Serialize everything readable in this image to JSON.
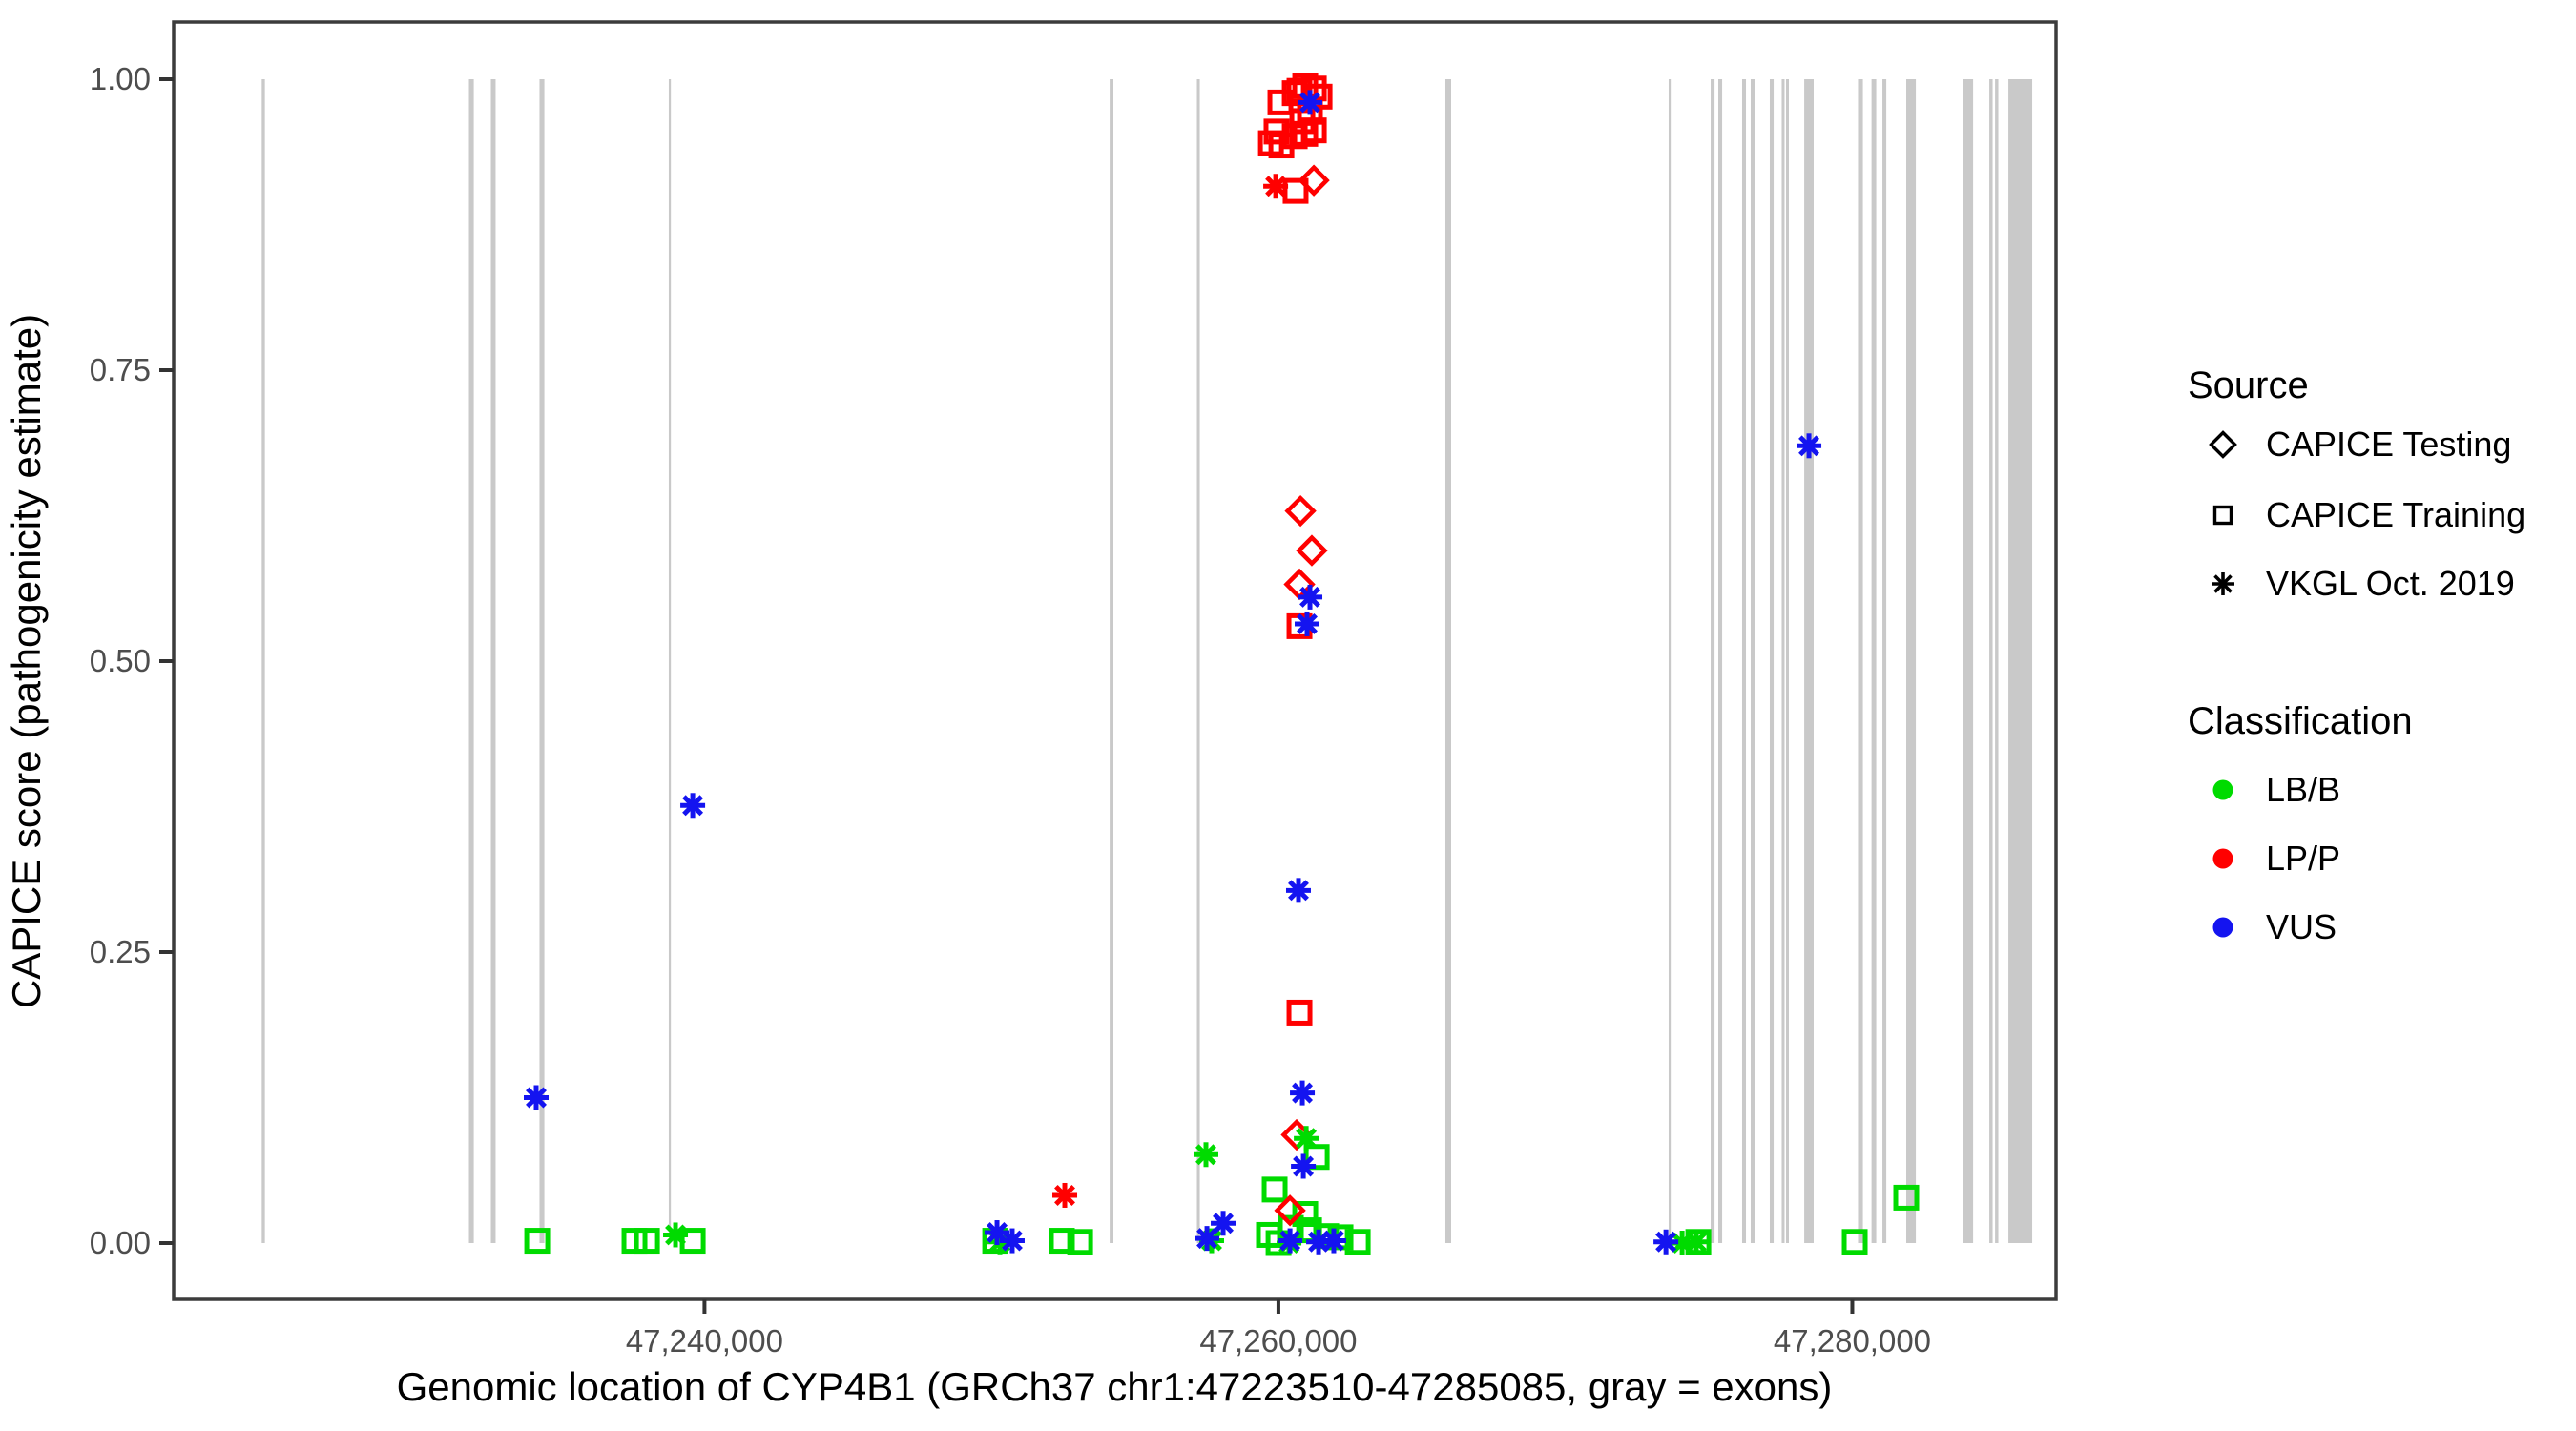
{
  "legend": {
    "source": {
      "title": "Source",
      "items": [
        {
          "label": "CAPICE Testing",
          "marker": "diamond"
        },
        {
          "label": "CAPICE Training",
          "marker": "square"
        },
        {
          "label": "VKGL Oct. 2019",
          "marker": "asterisk"
        }
      ]
    },
    "classification": {
      "title": "Classification",
      "items": [
        {
          "label": "LB/B",
          "color": "#00DB00"
        },
        {
          "label": "LP/P",
          "color": "#FF0000"
        },
        {
          "label": "VUS",
          "color": "#1414F0"
        }
      ]
    }
  },
  "chart_data": {
    "type": "scatter",
    "title": "",
    "xlabel": "Genomic location of CYP4B1 (GRCh37 chr1:47223510-47285085, gray = exons)",
    "ylabel": "CAPICE score (pathogenicity estimate)",
    "x_domain": [
      47221500,
      47287100
    ],
    "ylim": [
      0,
      1
    ],
    "grid": false,
    "legend_position": "right",
    "exon_color": "#C9C9C9",
    "class_colors": {
      "LB/B": "#00DB00",
      "LP/P": "#FF0000",
      "VUS": "#1414F0"
    },
    "shape_map": {
      "CAPICE Testing": "diamond",
      "CAPICE Training": "square",
      "VKGL Oct. 2019": "asterisk"
    },
    "x_ticks": [
      {
        "pos": 47240000,
        "label": "47,240,000"
      },
      {
        "pos": 47260000,
        "label": "47,260,000"
      },
      {
        "pos": 47280000,
        "label": "47,280,000"
      }
    ],
    "y_ticks": [
      {
        "value": 0.0,
        "label": "0.00"
      },
      {
        "value": 0.25,
        "label": "0.25"
      },
      {
        "value": 0.5,
        "label": "0.50"
      },
      {
        "value": 0.75,
        "label": "0.75"
      },
      {
        "value": 1.0,
        "label": "1.00"
      }
    ],
    "exons": [
      {
        "start": 47224570,
        "end": 47224680
      },
      {
        "start": 47231790,
        "end": 47231960
      },
      {
        "start": 47232555,
        "end": 47232720
      },
      {
        "start": 47234250,
        "end": 47234420
      },
      {
        "start": 47238755,
        "end": 47238825
      },
      {
        "start": 47254120,
        "end": 47254250
      },
      {
        "start": 47257160,
        "end": 47257260
      },
      {
        "start": 47265820,
        "end": 47266020
      },
      {
        "start": 47273600,
        "end": 47273670
      },
      {
        "start": 47275065,
        "end": 47275200
      },
      {
        "start": 47275330,
        "end": 47275465
      },
      {
        "start": 47276160,
        "end": 47276295
      },
      {
        "start": 47276460,
        "end": 47276595
      },
      {
        "start": 47277125,
        "end": 47277260
      },
      {
        "start": 47277540,
        "end": 47277640
      },
      {
        "start": 47277690,
        "end": 47277790
      },
      {
        "start": 47278325,
        "end": 47278655
      },
      {
        "start": 47280200,
        "end": 47280370
      },
      {
        "start": 47280670,
        "end": 47280835
      },
      {
        "start": 47281050,
        "end": 47281185
      },
      {
        "start": 47281880,
        "end": 47282215
      },
      {
        "start": 47283875,
        "end": 47284210
      },
      {
        "start": 47284775,
        "end": 47284890
      },
      {
        "start": 47284975,
        "end": 47285090
      },
      {
        "start": 47285440,
        "end": 47286270
      }
    ],
    "points": [
      {
        "pos": 47260735,
        "score": 0.99,
        "source": "CAPICE Training",
        "class": "LP/P"
      },
      {
        "pos": 47260935,
        "score": 0.994,
        "source": "CAPICE Training",
        "class": "LP/P"
      },
      {
        "pos": 47261235,
        "score": 0.992,
        "source": "CAPICE Training",
        "class": "LP/P"
      },
      {
        "pos": 47260570,
        "score": 0.988,
        "source": "CAPICE Training",
        "class": "LP/P"
      },
      {
        "pos": 47261435,
        "score": 0.985,
        "source": "CAPICE Training",
        "class": "LP/P"
      },
      {
        "pos": 47260070,
        "score": 0.98,
        "source": "CAPICE Training",
        "class": "LP/P"
      },
      {
        "pos": 47261100,
        "score": 0.972,
        "source": "CAPICE Training",
        "class": "LP/P"
      },
      {
        "pos": 47260835,
        "score": 0.964,
        "source": "CAPICE Training",
        "class": "LP/P"
      },
      {
        "pos": 47259935,
        "score": 0.955,
        "source": "CAPICE Training",
        "class": "LP/P"
      },
      {
        "pos": 47261235,
        "score": 0.956,
        "source": "CAPICE Training",
        "class": "LP/P"
      },
      {
        "pos": 47260935,
        "score": 0.953,
        "source": "CAPICE Training",
        "class": "LP/P"
      },
      {
        "pos": 47260570,
        "score": 0.951,
        "source": "CAPICE Training",
        "class": "LP/P"
      },
      {
        "pos": 47259740,
        "score": 0.945,
        "source": "CAPICE Training",
        "class": "LP/P"
      },
      {
        "pos": 47260105,
        "score": 0.943,
        "source": "CAPICE Training",
        "class": "LP/P"
      },
      {
        "pos": 47260600,
        "score": 0.904,
        "source": "CAPICE Training",
        "class": "LP/P"
      },
      {
        "pos": 47260735,
        "score": 0.53,
        "source": "CAPICE Training",
        "class": "LP/P"
      },
      {
        "pos": 47260735,
        "score": 0.198,
        "source": "CAPICE Training",
        "class": "LP/P"
      },
      {
        "pos": 47259905,
        "score": 0.908,
        "source": "VKGL Oct. 2019",
        "class": "LP/P"
      },
      {
        "pos": 47252555,
        "score": 0.041,
        "source": "VKGL Oct. 2019",
        "class": "LP/P"
      },
      {
        "pos": 47261235,
        "score": 0.913,
        "source": "CAPICE Testing",
        "class": "LP/P"
      },
      {
        "pos": 47260770,
        "score": 0.629,
        "source": "CAPICE Testing",
        "class": "LP/P"
      },
      {
        "pos": 47261165,
        "score": 0.595,
        "source": "CAPICE Testing",
        "class": "LP/P"
      },
      {
        "pos": 47260735,
        "score": 0.566,
        "source": "CAPICE Testing",
        "class": "LP/P"
      },
      {
        "pos": 47260635,
        "score": 0.093,
        "source": "CAPICE Testing",
        "class": "LP/P"
      },
      {
        "pos": 47260405,
        "score": 0.028,
        "source": "CAPICE Testing",
        "class": "LP/P"
      },
      {
        "pos": 47261100,
        "score": 0.98,
        "source": "VKGL Oct. 2019",
        "class": "VUS"
      },
      {
        "pos": 47261100,
        "score": 0.555,
        "source": "VKGL Oct. 2019",
        "class": "VUS"
      },
      {
        "pos": 47261000,
        "score": 0.532,
        "source": "VKGL Oct. 2019",
        "class": "VUS"
      },
      {
        "pos": 47260700,
        "score": 0.303,
        "source": "VKGL Oct. 2019",
        "class": "VUS"
      },
      {
        "pos": 47260835,
        "score": 0.129,
        "source": "VKGL Oct. 2019",
        "class": "VUS"
      },
      {
        "pos": 47260870,
        "score": 0.066,
        "source": "VKGL Oct. 2019",
        "class": "VUS"
      },
      {
        "pos": 47239590,
        "score": 0.376,
        "source": "VKGL Oct. 2019",
        "class": "VUS"
      },
      {
        "pos": 47234135,
        "score": 0.125,
        "source": "VKGL Oct. 2019",
        "class": "VUS"
      },
      {
        "pos": 47278490,
        "score": 0.685,
        "source": "VKGL Oct. 2019",
        "class": "VUS"
      },
      {
        "pos": 47250195,
        "score": 0.009,
        "source": "VKGL Oct. 2019",
        "class": "VUS"
      },
      {
        "pos": 47250725,
        "score": 0.002,
        "source": "VKGL Oct. 2019",
        "class": "VUS"
      },
      {
        "pos": 47258075,
        "score": 0.017,
        "source": "VKGL Oct. 2019",
        "class": "VUS"
      },
      {
        "pos": 47257510,
        "score": 0.004,
        "source": "VKGL Oct. 2019",
        "class": "VUS"
      },
      {
        "pos": 47273505,
        "score": 0.001,
        "source": "VKGL Oct. 2019",
        "class": "VUS"
      },
      {
        "pos": 47260405,
        "score": 0.002,
        "source": "VKGL Oct. 2019",
        "class": "VUS"
      },
      {
        "pos": 47261400,
        "score": 0.001,
        "source": "VKGL Oct. 2019",
        "class": "VUS"
      },
      {
        "pos": 47261930,
        "score": 0.002,
        "source": "VKGL Oct. 2019",
        "class": "VUS"
      },
      {
        "pos": 47234170,
        "score": 0.002,
        "source": "CAPICE Training",
        "class": "LB/B"
      },
      {
        "pos": 47237560,
        "score": 0.002,
        "source": "CAPICE Training",
        "class": "LB/B"
      },
      {
        "pos": 47237995,
        "score": 0.002,
        "source": "CAPICE Training",
        "class": "LB/B"
      },
      {
        "pos": 47239590,
        "score": 0.002,
        "source": "CAPICE Training",
        "class": "LB/B"
      },
      {
        "pos": 47250130,
        "score": 0.002,
        "source": "CAPICE Training",
        "class": "LB/B"
      },
      {
        "pos": 47252455,
        "score": 0.002,
        "source": "CAPICE Training",
        "class": "LB/B"
      },
      {
        "pos": 47253090,
        "score": 0.001,
        "source": "CAPICE Training",
        "class": "LB/B"
      },
      {
        "pos": 47259870,
        "score": 0.046,
        "source": "CAPICE Training",
        "class": "LB/B"
      },
      {
        "pos": 47261335,
        "score": 0.074,
        "source": "CAPICE Training",
        "class": "LB/B"
      },
      {
        "pos": 47260935,
        "score": 0.025,
        "source": "CAPICE Training",
        "class": "LB/B"
      },
      {
        "pos": 47259670,
        "score": 0.007,
        "source": "CAPICE Training",
        "class": "LB/B"
      },
      {
        "pos": 47260005,
        "score": 0.0,
        "source": "CAPICE Training",
        "class": "LB/B"
      },
      {
        "pos": 47260435,
        "score": 0.013,
        "source": "CAPICE Training",
        "class": "LB/B"
      },
      {
        "pos": 47261070,
        "score": 0.011,
        "source": "CAPICE Training",
        "class": "LB/B"
      },
      {
        "pos": 47261665,
        "score": 0.006,
        "source": "CAPICE Training",
        "class": "LB/B"
      },
      {
        "pos": 47262165,
        "score": 0.005,
        "source": "CAPICE Training",
        "class": "LB/B"
      },
      {
        "pos": 47262765,
        "score": 0.001,
        "source": "CAPICE Training",
        "class": "LB/B"
      },
      {
        "pos": 47281880,
        "score": 0.039,
        "source": "CAPICE Training",
        "class": "LB/B"
      },
      {
        "pos": 47280085,
        "score": 0.001,
        "source": "CAPICE Training",
        "class": "LB/B"
      },
      {
        "pos": 47274635,
        "score": 0.001,
        "source": "CAPICE Training",
        "class": "LB/B"
      },
      {
        "pos": 47238990,
        "score": 0.007,
        "source": "VKGL Oct. 2019",
        "class": "LB/B"
      },
      {
        "pos": 47257475,
        "score": 0.076,
        "source": "VKGL Oct. 2019",
        "class": "LB/B"
      },
      {
        "pos": 47260970,
        "score": 0.09,
        "source": "VKGL Oct. 2019",
        "class": "LB/B"
      },
      {
        "pos": 47257675,
        "score": 0.002,
        "source": "VKGL Oct. 2019",
        "class": "LB/B"
      },
      {
        "pos": 47260370,
        "score": 0.0,
        "source": "VKGL Oct. 2019",
        "class": "LB/B"
      },
      {
        "pos": 47274070,
        "score": 0.0,
        "source": "VKGL Oct. 2019",
        "class": "LB/B"
      },
      {
        "pos": 47274565,
        "score": 0.001,
        "source": "VKGL Oct. 2019",
        "class": "LB/B"
      },
      {
        "pos": 47250295,
        "score": 0.001,
        "source": "VKGL Oct. 2019",
        "class": "LB/B"
      }
    ]
  }
}
